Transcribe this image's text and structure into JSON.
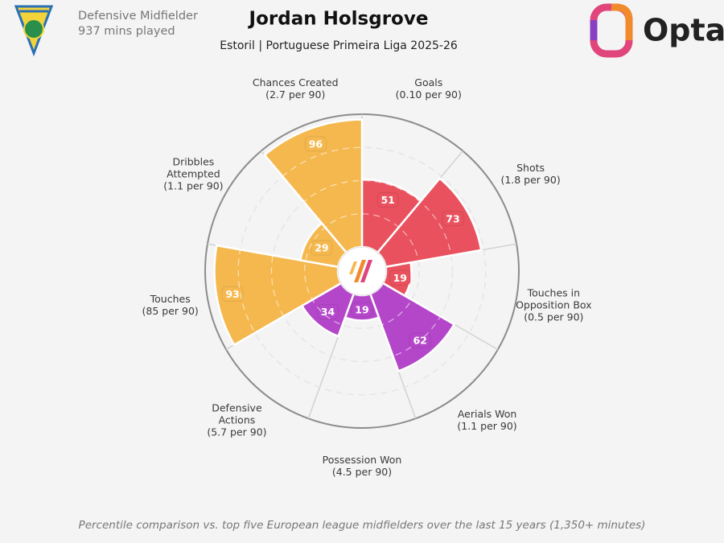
{
  "header": {
    "position": "Defensive Midfielder",
    "minutes": "937 mins played",
    "brand": "Opta"
  },
  "chart_data": {
    "type": "polar_bar",
    "title": "Jordan Holsgrove",
    "subtitle": "Estoril | Portuguese Primeira Liga 2025-26",
    "categories": [
      "Goals",
      "Shots",
      "Touches in\nOpposition Box",
      "Aerials Won",
      "Possession Won",
      "Defensive\nActions",
      "Touches",
      "Dribbles\nAttempted",
      "Chances Created"
    ],
    "per90_labels": [
      "(0.10 per 90)",
      "(1.8 per 90)",
      "(0.5 per 90)",
      "(1.1 per 90)",
      "(4.5 per 90)",
      "(5.7 per 90)",
      "(85 per 90)",
      "(1.1 per 90)",
      "(2.7 per 90)"
    ],
    "values": [
      51,
      73,
      19,
      62,
      19,
      34,
      93,
      29,
      96
    ],
    "colors": [
      "#e8515d",
      "#e8515d",
      "#e8515d",
      "#b446c9",
      "#b446c9",
      "#b446c9",
      "#f5b84f",
      "#f5b84f",
      "#f5b84f"
    ],
    "rlim": [
      0,
      100
    ],
    "rticks": [
      25,
      50,
      75
    ],
    "footnote": "Percentile comparison vs. top five European league midfielders over the last 15 years (1,350+ minutes)"
  }
}
